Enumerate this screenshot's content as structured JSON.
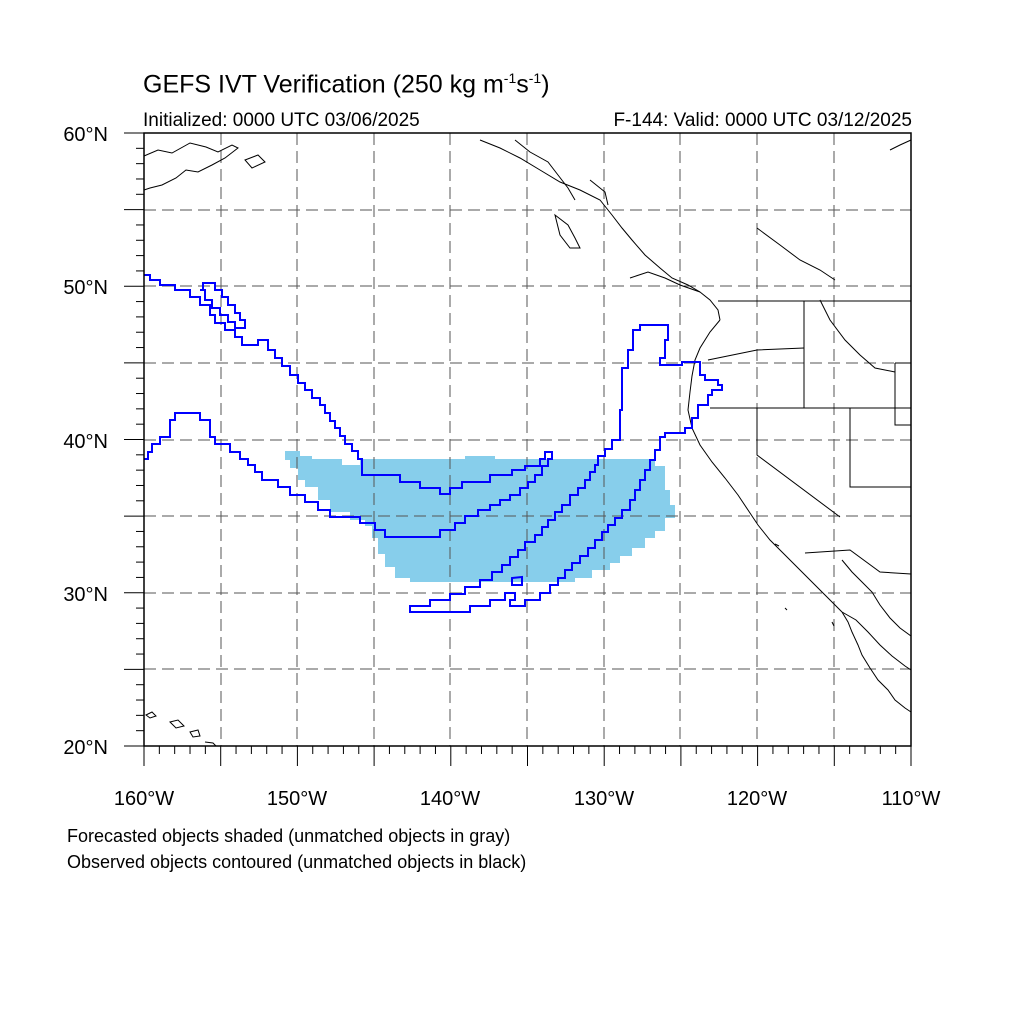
{
  "title": {
    "main": "GEFS IVT Verification (250 kg m",
    "exp1": "-1",
    "mid": "s",
    "exp2": "-1",
    "end": ")"
  },
  "initialized": "Initialized: 0000 UTC 03/06/2025",
  "valid": "F-144: Valid: 0000 UTC 03/12/2025",
  "lon_labels": [
    "160°W",
    "150°W",
    "140°W",
    "130°W",
    "120°W",
    "110°W"
  ],
  "lat_labels": [
    "60°N",
    "50°N",
    "40°N",
    "30°N",
    "20°N"
  ],
  "map_extent": {
    "lon_min": -160,
    "lon_max": -110,
    "lat_min": 20,
    "lat_max": 60
  },
  "colors": {
    "forecast_fill": "#87ceeb",
    "observed_contour": "#0000ff",
    "coastline": "#000000",
    "grid": "#000000"
  },
  "legend": {
    "line1": "Forecasted objects shaded (unmatched objects in gray)",
    "line2": "Observed objects contoured (unmatched objects in black)"
  }
}
